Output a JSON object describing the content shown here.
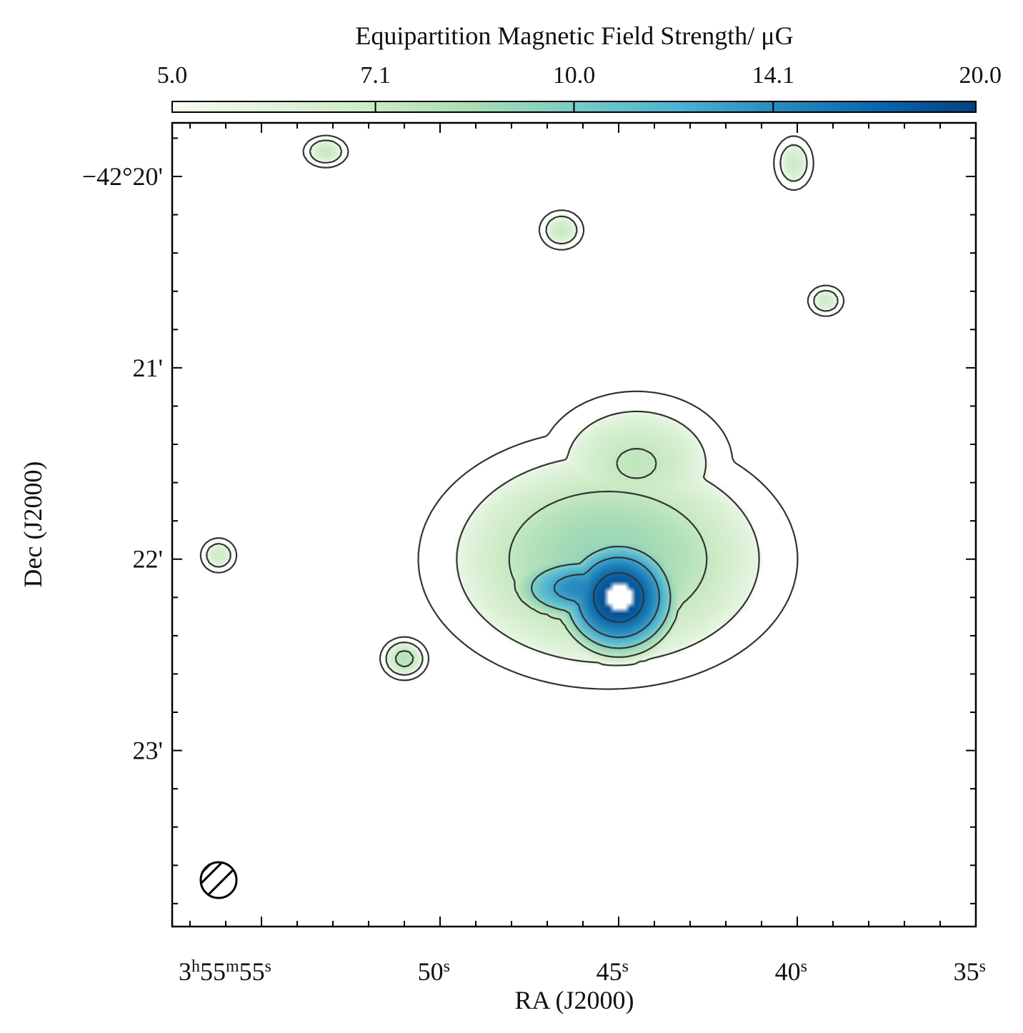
{
  "chart_data": {
    "type": "heatmap",
    "title": "",
    "colorbar": {
      "label": "Equipartition Magnetic Field  Strength/ μG",
      "ticks": [
        5.0,
        7.1,
        10.0,
        14.1,
        20.0
      ],
      "tick_labels": [
        "5.0",
        "7.1",
        "10.0",
        "14.1",
        "20.0"
      ],
      "range": [
        5.0,
        20.0
      ],
      "scale": "log",
      "colormap": "GnBu",
      "colors": [
        "#f7fcf0",
        "#e0f3db",
        "#ccebc5",
        "#a8ddb5",
        "#7bccc4",
        "#4eb3d3",
        "#2b8cbe",
        "#0868ac",
        "#084081"
      ]
    },
    "xaxis": {
      "label": "RA (J2000)",
      "ticks": [
        {
          "value_s": 55,
          "prefix": "3",
          "h": "h",
          "mid": "55",
          "m": "m",
          "sec": "55",
          "s": "s"
        },
        {
          "value_s": 50,
          "sec": "50",
          "s": "s"
        },
        {
          "value_s": 45,
          "sec": "45",
          "s": "s"
        },
        {
          "value_s": 40,
          "sec": "40",
          "s": "s"
        },
        {
          "value_s": 35,
          "sec": "35",
          "s": "s"
        }
      ],
      "range_s": [
        57.5,
        35.0
      ]
    },
    "yaxis": {
      "label": "Dec (J2000)",
      "ticks": [
        {
          "value_arcmin": -20,
          "label": "−42°20'"
        },
        {
          "value_arcmin": -21,
          "label": "21'"
        },
        {
          "value_arcmin": -22,
          "label": "22'"
        },
        {
          "value_arcmin": -23,
          "label": "23'"
        }
      ],
      "range_arcmin": [
        -19.72,
        -23.92
      ]
    },
    "beam": {
      "shape": "circle",
      "location": "bottom-left",
      "hatched": true
    },
    "contours": {
      "color": "#333333",
      "levels": 7
    },
    "field": {
      "blobs": [
        {
          "name": "central-core",
          "ra_s": 45.0,
          "dec_arcmin": -22.2,
          "peak_uG": 20.0,
          "sigma_s": 1.2,
          "sigma_arcmin": 0.22
        },
        {
          "name": "central-ridge",
          "ra_s": 46.0,
          "dec_arcmin": -22.15,
          "peak_uG": 14.5,
          "sigma_s": 1.6,
          "sigma_arcmin": 0.14
        },
        {
          "name": "disk",
          "ra_s": 45.3,
          "dec_arcmin": -22.0,
          "peak_uG": 9.0,
          "sigma_s": 4.3,
          "sigma_arcmin": 0.55
        },
        {
          "name": "north-arm",
          "ra_s": 44.5,
          "dec_arcmin": -21.5,
          "peak_uG": 7.5,
          "sigma_s": 2.5,
          "sigma_arcmin": 0.35
        },
        {
          "name": "source-north-left",
          "ra_s": 53.2,
          "dec_arcmin": -19.87,
          "peak_uG": 7.3,
          "sigma_s": 0.6,
          "sigma_arcmin": 0.08
        },
        {
          "name": "source-north-right",
          "ra_s": 40.1,
          "dec_arcmin": -19.93,
          "peak_uG": 7.0,
          "sigma_s": 0.55,
          "sigma_arcmin": 0.14
        },
        {
          "name": "source-north-mid",
          "ra_s": 46.6,
          "dec_arcmin": -20.28,
          "peak_uG": 7.2,
          "sigma_s": 0.6,
          "sigma_arcmin": 0.1
        },
        {
          "name": "source-east-right",
          "ra_s": 39.2,
          "dec_arcmin": -20.65,
          "peak_uG": 7.0,
          "sigma_s": 0.5,
          "sigma_arcmin": 0.08
        },
        {
          "name": "source-west",
          "ra_s": 56.2,
          "dec_arcmin": -21.98,
          "peak_uG": 7.0,
          "sigma_s": 0.5,
          "sigma_arcmin": 0.09
        },
        {
          "name": "source-southwest",
          "ra_s": 51.0,
          "dec_arcmin": -22.52,
          "peak_uG": 8.0,
          "sigma_s": 0.6,
          "sigma_arcmin": 0.1
        }
      ]
    }
  }
}
